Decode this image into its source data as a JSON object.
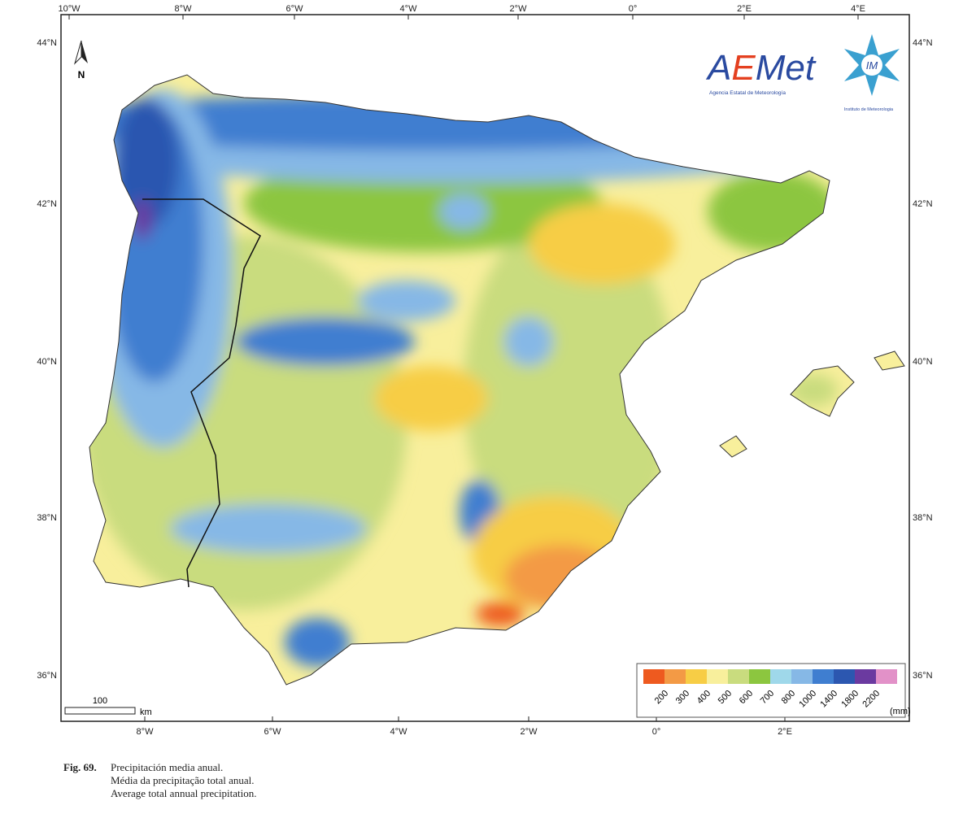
{
  "map": {
    "lon_ticks_top": [
      "10°W",
      "8°W",
      "6°W",
      "4°W",
      "2°W",
      "0°",
      "2°E",
      "4°E"
    ],
    "lon_ticks_bottom": [
      "8°W",
      "6°W",
      "4°W",
      "2°W",
      "0°",
      "2°E"
    ],
    "lat_ticks": [
      "44°N",
      "42°N",
      "40°N",
      "38°N",
      "36°N"
    ],
    "north_label": "N",
    "scale": {
      "value": "100",
      "unit": "km"
    },
    "legend": {
      "unit": "(mm)",
      "colors": [
        "#ee5a1f",
        "#f39a45",
        "#f7cd45",
        "#f8ef9c",
        "#c9dc7e",
        "#8cc63f",
        "#9fd8ea",
        "#86b8e6",
        "#3f7ed0",
        "#2c57b0",
        "#6b3aa0",
        "#e291c8"
      ],
      "labels": [
        "200",
        "300",
        "400",
        "500",
        "600",
        "700",
        "800",
        "1000",
        "1400",
        "1800",
        "2200"
      ]
    },
    "logos": {
      "aemet": "AEMet",
      "aemet_sub": "Agencia Estatal de Meteorología",
      "im": "IM",
      "im_sub": "Instituto de Meteorologia"
    }
  },
  "caption": {
    "fig": "Fig. 69.",
    "lines": [
      "Precipitación media anual.",
      "Média da precipitação total anual.",
      "Average total annual precipitation."
    ]
  }
}
